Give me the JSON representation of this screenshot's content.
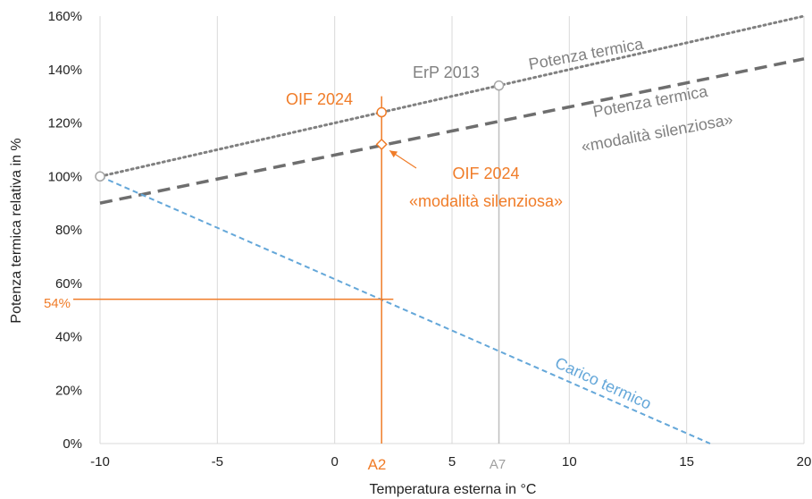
{
  "chart_data": {
    "type": "line",
    "xlabel": "Temperatura esterna in °C",
    "ylabel": "Potenza termica relativa in %",
    "xlim": [
      -10,
      20
    ],
    "ylim": [
      0,
      160
    ],
    "x_ticks": [
      -10,
      -5,
      0,
      5,
      10,
      15,
      20
    ],
    "x_tick_labels": [
      "-10",
      "-5",
      "0",
      "5",
      "10",
      "15",
      "20"
    ],
    "y_ticks": [
      0,
      20,
      40,
      60,
      80,
      100,
      120,
      140,
      160
    ],
    "y_tick_labels": [
      "0%",
      "20%",
      "40%",
      "60%",
      "80%",
      "100%",
      "120%",
      "140%",
      "160%"
    ],
    "grid": "vertical",
    "colors": {
      "grey": "#808080",
      "dark_grey": "#6e6e6e",
      "orange": "#f07c28",
      "blue": "#64a7d9",
      "grid": "#d9d9d9"
    },
    "series": [
      {
        "name": "Potenza termica",
        "style": "dotted",
        "color": "#808080",
        "x": [
          -10,
          20
        ],
        "y": [
          100,
          160
        ]
      },
      {
        "name": "Potenza termica «modalità silenziosa»",
        "style": "dashed",
        "color": "#6e6e6e",
        "x": [
          -10,
          20
        ],
        "y": [
          90,
          144
        ]
      },
      {
        "name": "Carico termico",
        "style": "dashed",
        "color": "#64a7d9",
        "x": [
          -10,
          16
        ],
        "y": [
          100,
          0
        ]
      }
    ],
    "points": [
      {
        "name": "ErP 2013",
        "x": 7,
        "y": 134,
        "marker": "circle",
        "color": "#a6a6a6"
      },
      {
        "name": "",
        "x": -10,
        "y": 100,
        "marker": "circle",
        "color": "#a6a6a6"
      },
      {
        "name": "OIF 2024",
        "x": 2,
        "y": 124,
        "marker": "circle",
        "color": "#f07c28"
      },
      {
        "name": "OIF 2024 «modalità silenziosa»",
        "x": 2,
        "y": 112,
        "marker": "diamond",
        "color": "#f07c28"
      }
    ],
    "reference_lines": {
      "a2_x": 2,
      "a2_top": 130,
      "a7_x": 7,
      "a7_top": 134,
      "h54_y": 54,
      "h54_x_end": 2.5
    },
    "annotations": {
      "potenza": "Potenza termica",
      "silent_1": "Potenza termica",
      "silent_2": "«modalità silenziosa»",
      "erp": "ErP 2013",
      "oif": "OIF 2024",
      "oif_silent_1": "OIF 2024",
      "oif_silent_2": "«modalità silenziosa»",
      "carico": "Carico termico",
      "a2": "A2",
      "a7": "A7",
      "p54": "54%"
    }
  }
}
